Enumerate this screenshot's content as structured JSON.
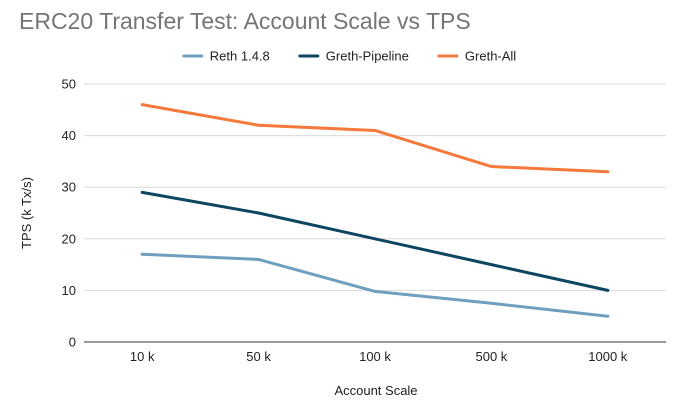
{
  "chart_data": {
    "type": "line",
    "title": "ERC20 Transfer Test: Account Scale vs TPS",
    "xlabel": "Account Scale",
    "ylabel": "TPS (k Tx/s)",
    "categories": [
      "10 k",
      "50 k",
      "100 k",
      "500 k",
      "1000 k"
    ],
    "ylim": [
      0,
      50
    ],
    "yticks": [
      0,
      10,
      20,
      30,
      40,
      50
    ],
    "grid": true,
    "legend_position": "top",
    "series": [
      {
        "name": "Reth 1.4.8",
        "color": "#6f9fbf",
        "values": [
          17,
          16,
          9.8,
          7.5,
          5
        ]
      },
      {
        "name": "Greth-Pipeline",
        "color": "#0e4661",
        "values": [
          29,
          25,
          20,
          15,
          10
        ]
      },
      {
        "name": "Greth-All",
        "color": "#f4793b",
        "values": [
          46,
          42,
          41,
          34,
          33
        ]
      }
    ]
  }
}
